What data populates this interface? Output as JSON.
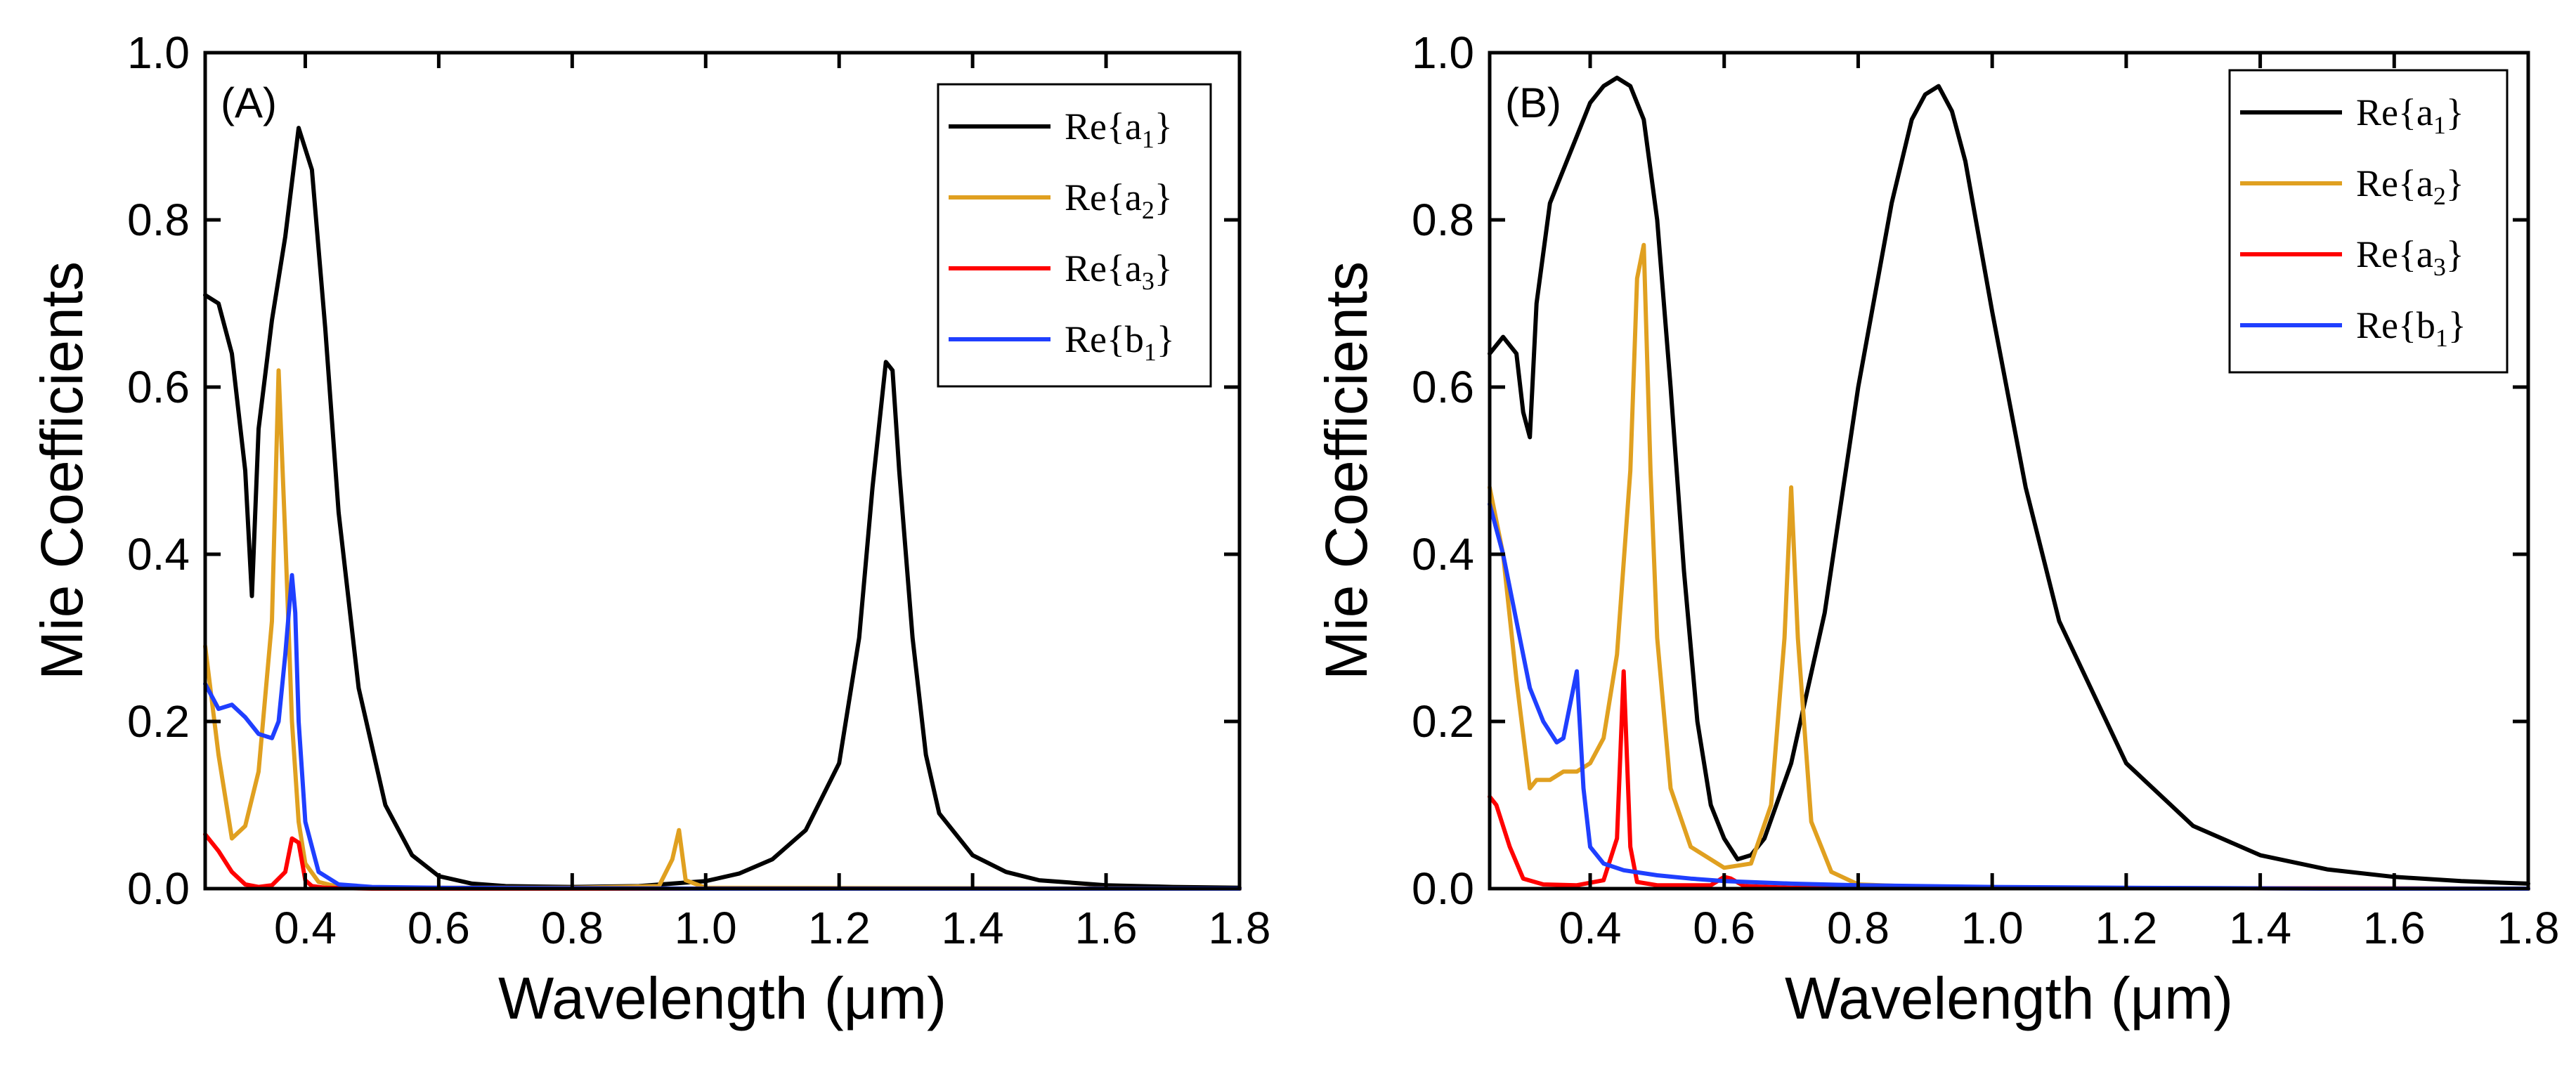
{
  "chart_data": [
    {
      "type": "line",
      "panel_label": "(A)",
      "xlabel": "Wavelength (μm)",
      "ylabel": "Mie Coefficients",
      "xlim": [
        0.25,
        1.8
      ],
      "ylim": [
        0.0,
        1.0
      ],
      "x_ticks": [
        "0.4",
        "0.6",
        "0.8",
        "1.0",
        "1.2",
        "1.4",
        "1.6",
        "1.8"
      ],
      "y_ticks": [
        "0.0",
        "0.2",
        "0.4",
        "0.6",
        "0.8",
        "1.0"
      ],
      "x_tick_values": [
        0.4,
        0.6,
        0.8,
        1.0,
        1.2,
        1.4,
        1.6,
        1.8
      ],
      "y_tick_values": [
        0.0,
        0.2,
        0.4,
        0.6,
        0.8,
        1.0
      ],
      "legend_position": "top-right",
      "series": [
        {
          "name": "Re{a1}",
          "legend_main": "Re{a",
          "legend_sub": "1",
          "legend_end": "}",
          "color": "#000000",
          "x": [
            0.25,
            0.27,
            0.29,
            0.31,
            0.32,
            0.33,
            0.35,
            0.37,
            0.39,
            0.41,
            0.43,
            0.45,
            0.48,
            0.52,
            0.56,
            0.6,
            0.65,
            0.7,
            0.8,
            0.9,
            1.0,
            1.05,
            1.1,
            1.15,
            1.2,
            1.23,
            1.25,
            1.27,
            1.28,
            1.29,
            1.31,
            1.33,
            1.35,
            1.4,
            1.45,
            1.5,
            1.6,
            1.7,
            1.8
          ],
          "y": [
            0.71,
            0.7,
            0.64,
            0.5,
            0.35,
            0.55,
            0.68,
            0.78,
            0.91,
            0.86,
            0.67,
            0.45,
            0.24,
            0.1,
            0.04,
            0.015,
            0.006,
            0.003,
            0.002,
            0.003,
            0.009,
            0.018,
            0.035,
            0.07,
            0.15,
            0.3,
            0.48,
            0.63,
            0.62,
            0.5,
            0.3,
            0.16,
            0.09,
            0.04,
            0.02,
            0.01,
            0.004,
            0.002,
            0.001
          ]
        },
        {
          "name": "Re{a2}",
          "legend_main": "Re{a",
          "legend_sub": "2",
          "legend_end": "}",
          "color": "#E0A020",
          "x": [
            0.25,
            0.27,
            0.29,
            0.31,
            0.33,
            0.35,
            0.36,
            0.37,
            0.38,
            0.39,
            0.4,
            0.42,
            0.45,
            0.5,
            0.8,
            0.93,
            0.95,
            0.96,
            0.97,
            1.0,
            1.8
          ],
          "y": [
            0.29,
            0.16,
            0.06,
            0.075,
            0.14,
            0.32,
            0.62,
            0.42,
            0.2,
            0.08,
            0.03,
            0.008,
            0.002,
            0.001,
            0.001,
            0.003,
            0.035,
            0.07,
            0.01,
            0.001,
            0.0
          ]
        },
        {
          "name": "Re{a3}",
          "legend_main": "Re{a",
          "legend_sub": "3",
          "legend_end": "}",
          "color": "#FF0000",
          "x": [
            0.25,
            0.27,
            0.29,
            0.31,
            0.33,
            0.35,
            0.37,
            0.38,
            0.39,
            0.4,
            0.41,
            0.43,
            0.5,
            1.8
          ],
          "y": [
            0.065,
            0.045,
            0.02,
            0.005,
            0.002,
            0.004,
            0.02,
            0.06,
            0.055,
            0.01,
            0.003,
            0.001,
            0.0,
            0.0
          ]
        },
        {
          "name": "Re{b1}",
          "legend_main": "Re{b",
          "legend_sub": "1",
          "legend_end": "}",
          "color": "#1F3FFF",
          "x": [
            0.25,
            0.27,
            0.29,
            0.31,
            0.33,
            0.35,
            0.36,
            0.37,
            0.38,
            0.385,
            0.39,
            0.4,
            0.42,
            0.45,
            0.5,
            0.6,
            1.0,
            1.8
          ],
          "y": [
            0.245,
            0.215,
            0.22,
            0.205,
            0.185,
            0.18,
            0.2,
            0.28,
            0.375,
            0.33,
            0.2,
            0.08,
            0.02,
            0.005,
            0.002,
            0.001,
            0.0,
            0.0
          ]
        }
      ]
    },
    {
      "type": "line",
      "panel_label": "(B)",
      "xlabel": "Wavelength (μm)",
      "ylabel": "Mie Coefficients",
      "xlim": [
        0.25,
        1.8
      ],
      "ylim": [
        0.0,
        1.0
      ],
      "x_ticks": [
        "0.4",
        "0.6",
        "0.8",
        "1.0",
        "1.2",
        "1.4",
        "1.6",
        "1.8"
      ],
      "y_ticks": [
        "0.0",
        "0.2",
        "0.4",
        "0.6",
        "0.8",
        "1.0"
      ],
      "x_tick_values": [
        0.4,
        0.6,
        0.8,
        1.0,
        1.2,
        1.4,
        1.6,
        1.8
      ],
      "y_tick_values": [
        0.0,
        0.2,
        0.4,
        0.6,
        0.8,
        1.0
      ],
      "legend_position": "top-right",
      "series": [
        {
          "name": "Re{a1}",
          "legend_main": "Re{a",
          "legend_sub": "1",
          "legend_end": "}",
          "color": "#000000",
          "x": [
            0.25,
            0.27,
            0.29,
            0.3,
            0.31,
            0.32,
            0.34,
            0.36,
            0.38,
            0.4,
            0.42,
            0.44,
            0.46,
            0.48,
            0.5,
            0.52,
            0.54,
            0.56,
            0.58,
            0.6,
            0.62,
            0.64,
            0.66,
            0.7,
            0.75,
            0.8,
            0.85,
            0.88,
            0.9,
            0.92,
            0.94,
            0.96,
            1.0,
            1.05,
            1.1,
            1.2,
            1.3,
            1.4,
            1.5,
            1.6,
            1.7,
            1.8
          ],
          "y": [
            0.64,
            0.66,
            0.64,
            0.57,
            0.54,
            0.7,
            0.82,
            0.86,
            0.9,
            0.94,
            0.96,
            0.97,
            0.96,
            0.92,
            0.8,
            0.6,
            0.38,
            0.2,
            0.1,
            0.06,
            0.035,
            0.04,
            0.06,
            0.15,
            0.33,
            0.6,
            0.82,
            0.92,
            0.95,
            0.96,
            0.93,
            0.87,
            0.69,
            0.48,
            0.32,
            0.15,
            0.075,
            0.04,
            0.023,
            0.014,
            0.009,
            0.006
          ]
        },
        {
          "name": "Re{a2}",
          "legend_main": "Re{a",
          "legend_sub": "2",
          "legend_end": "}",
          "color": "#E0A020",
          "x": [
            0.25,
            0.27,
            0.29,
            0.31,
            0.32,
            0.34,
            0.36,
            0.38,
            0.4,
            0.42,
            0.44,
            0.46,
            0.47,
            0.48,
            0.49,
            0.5,
            0.52,
            0.55,
            0.6,
            0.64,
            0.67,
            0.69,
            0.7,
            0.71,
            0.73,
            0.76,
            0.8,
            0.9,
            1.0,
            1.8
          ],
          "y": [
            0.48,
            0.4,
            0.25,
            0.12,
            0.13,
            0.13,
            0.14,
            0.14,
            0.15,
            0.18,
            0.28,
            0.5,
            0.73,
            0.77,
            0.5,
            0.3,
            0.12,
            0.05,
            0.025,
            0.03,
            0.1,
            0.3,
            0.48,
            0.3,
            0.08,
            0.02,
            0.005,
            0.002,
            0.001,
            0.0
          ]
        },
        {
          "name": "Re{a3}",
          "legend_main": "Re{a",
          "legend_sub": "3",
          "legend_end": "}",
          "color": "#FF0000",
          "x": [
            0.25,
            0.26,
            0.28,
            0.3,
            0.33,
            0.38,
            0.42,
            0.44,
            0.45,
            0.46,
            0.47,
            0.5,
            0.58,
            0.6,
            0.61,
            0.63,
            0.7,
            1.8
          ],
          "y": [
            0.11,
            0.1,
            0.05,
            0.012,
            0.005,
            0.004,
            0.01,
            0.06,
            0.26,
            0.05,
            0.008,
            0.004,
            0.004,
            0.014,
            0.012,
            0.003,
            0.001,
            0.0
          ]
        },
        {
          "name": "Re{b1}",
          "legend_main": "Re{b",
          "legend_sub": "1",
          "legend_end": "}",
          "color": "#1F3FFF",
          "x": [
            0.25,
            0.27,
            0.29,
            0.31,
            0.33,
            0.35,
            0.36,
            0.37,
            0.38,
            0.39,
            0.4,
            0.42,
            0.45,
            0.5,
            0.55,
            0.6,
            0.7,
            0.8,
            1.0,
            1.2,
            1.5,
            1.8
          ],
          "y": [
            0.46,
            0.4,
            0.32,
            0.24,
            0.2,
            0.175,
            0.18,
            0.22,
            0.26,
            0.12,
            0.05,
            0.03,
            0.022,
            0.016,
            0.012,
            0.009,
            0.006,
            0.004,
            0.002,
            0.001,
            0.0,
            0.0
          ]
        }
      ]
    }
  ]
}
